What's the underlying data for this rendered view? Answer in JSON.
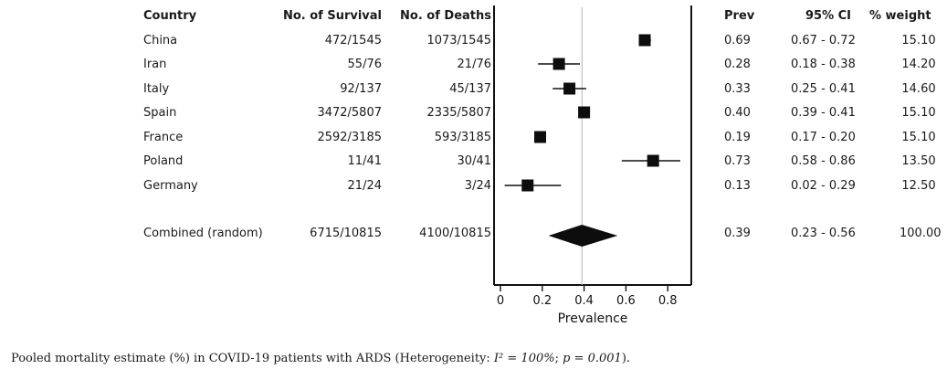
{
  "headers": {
    "country": "Country",
    "survival": "No. of Survival",
    "deaths": "No. of Deaths",
    "prev": "Prev",
    "ci": "95% CI",
    "weight": "% weight"
  },
  "rows": [
    {
      "country": "China",
      "survival": "472/1545",
      "deaths": "1073/1545",
      "prev": "0.69",
      "ci": "0.67 - 0.72",
      "weight": "15.10"
    },
    {
      "country": "Iran",
      "survival": "55/76",
      "deaths": "21/76",
      "prev": "0.28",
      "ci": "0.18 - 0.38",
      "weight": "14.20"
    },
    {
      "country": "Italy",
      "survival": "92/137",
      "deaths": "45/137",
      "prev": "0.33",
      "ci": "0.25 - 0.41",
      "weight": "14.60"
    },
    {
      "country": "Spain",
      "survival": "3472/5807",
      "deaths": "2335/5807",
      "prev": "0.40",
      "ci": "0.39 - 0.41",
      "weight": "15.10"
    },
    {
      "country": "France",
      "survival": "2592/3185",
      "deaths": "593/3185",
      "prev": "0.19",
      "ci": "0.17 - 0.20",
      "weight": "15.10"
    },
    {
      "country": "Poland",
      "survival": "11/41",
      "deaths": "30/41",
      "prev": "0.73",
      "ci": "0.58 - 0.86",
      "weight": "13.50"
    },
    {
      "country": "Germany",
      "survival": "21/24",
      "deaths": "3/24",
      "prev": "0.13",
      "ci": "0.02 - 0.29",
      "weight": "12.50"
    }
  ],
  "combined": {
    "country": "Combined (random)",
    "survival": "6715/10815",
    "deaths": "4100/10815",
    "prev": "0.39",
    "ci": "0.23 - 0.56",
    "weight": "100.00"
  },
  "caption": {
    "prefix": "Pooled mortality estimate (%) in COVID-19 patients with ARDS (Heterogeneity: ",
    "i2": "I² = 100%",
    "sep": "; ",
    "p": "p = 0.001",
    "suffix": ")."
  },
  "chart_data": {
    "type": "forest",
    "xlabel": "Prevalence",
    "xlim": [
      0,
      0.9
    ],
    "xticks": [
      0,
      0.2,
      0.4,
      0.6,
      0.8
    ],
    "xtick_labels": [
      "0",
      "0.2",
      "0.4",
      "0.6",
      "0.8"
    ],
    "reference_line": 0.39,
    "studies": [
      {
        "label": "China",
        "est": 0.69,
        "lo": 0.67,
        "hi": 0.72
      },
      {
        "label": "Iran",
        "est": 0.28,
        "lo": 0.18,
        "hi": 0.38
      },
      {
        "label": "Italy",
        "est": 0.33,
        "lo": 0.25,
        "hi": 0.41
      },
      {
        "label": "Spain",
        "est": 0.4,
        "lo": 0.39,
        "hi": 0.41
      },
      {
        "label": "France",
        "est": 0.19,
        "lo": 0.17,
        "hi": 0.2
      },
      {
        "label": "Poland",
        "est": 0.73,
        "lo": 0.58,
        "hi": 0.86
      },
      {
        "label": "Germany",
        "est": 0.13,
        "lo": 0.02,
        "hi": 0.29
      }
    ],
    "pooled": {
      "label": "Combined (random)",
      "est": 0.39,
      "lo": 0.23,
      "hi": 0.56
    }
  }
}
